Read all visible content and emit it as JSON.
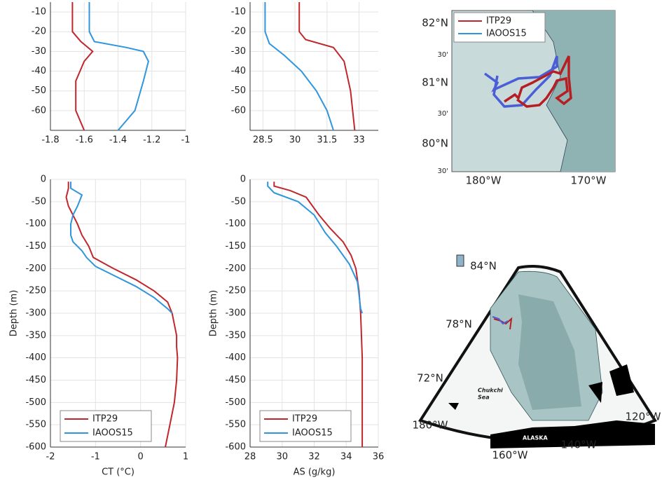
{
  "chart_data": [
    {
      "type": "profile",
      "xlim": [
        -1.8,
        -1
      ],
      "xticks": [
        -1.8,
        -1.6,
        -1.4,
        -1.2,
        -1
      ],
      "ylim": [
        -70,
        -5
      ],
      "yticks": [
        -60,
        -50,
        -40,
        -30,
        -20,
        -10
      ],
      "grid": true,
      "series": [
        {
          "name": "ITP29",
          "color": "#c0272d",
          "x": [
            -1.67,
            -1.67,
            -1.62,
            -1.55,
            -1.6,
            -1.65,
            -1.65,
            -1.6
          ],
          "y": [
            -5,
            -20,
            -25,
            -30,
            -35,
            -45,
            -60,
            -70
          ]
        },
        {
          "name": "IAOOS15",
          "color": "#2f95dc",
          "x": [
            -1.57,
            -1.57,
            -1.54,
            -1.35,
            -1.25,
            -1.22,
            -1.25,
            -1.3,
            -1.4
          ],
          "y": [
            -5,
            -20,
            -25,
            -28,
            -30,
            -35,
            -45,
            -60,
            -70
          ]
        }
      ]
    },
    {
      "type": "profile",
      "xlim": [
        27.9,
        33.9
      ],
      "xticks": [
        28.5,
        30,
        31.5,
        33
      ],
      "ylim": [
        -70,
        -5
      ],
      "yticks": [
        -60,
        -50,
        -40,
        -30,
        -20,
        -10
      ],
      "grid": true,
      "series": [
        {
          "name": "ITP29",
          "color": "#c0272d",
          "x": [
            30.2,
            30.2,
            30.5,
            31.8,
            32.3,
            32.6,
            32.8
          ],
          "y": [
            -5,
            -20,
            -24,
            -28,
            -35,
            -50,
            -70
          ]
        },
        {
          "name": "IAOOS15",
          "color": "#2f95dc",
          "x": [
            28.6,
            28.6,
            28.8,
            29.5,
            30.3,
            31,
            31.5,
            31.8
          ],
          "y": [
            -5,
            -20,
            -26,
            -32,
            -40,
            -50,
            -60,
            -70
          ]
        }
      ]
    },
    {
      "type": "profile",
      "xlim": [
        -2,
        1
      ],
      "xticks": [
        -2,
        -1,
        0,
        1
      ],
      "ylim": [
        -600,
        0
      ],
      "yticks": [
        -600,
        -550,
        -500,
        -450,
        -400,
        -350,
        -300,
        -250,
        -200,
        -150,
        -100,
        -50,
        0
      ],
      "grid": true,
      "xlabel": "CT (°C)",
      "ylabel": "Depth (m)",
      "legend": "lower left",
      "series": [
        {
          "name": "ITP29",
          "color": "#c0272d",
          "x": [
            -1.6,
            -1.6,
            -1.65,
            -1.6,
            -1.5,
            -1.4,
            -1.3,
            -1.15,
            -1.05,
            -0.6,
            -0.1,
            0.3,
            0.6,
            0.7,
            0.75,
            0.8,
            0.8,
            0.82,
            0.8,
            0.75,
            0.65,
            0.55
          ],
          "y": [
            -5,
            -20,
            -40,
            -60,
            -80,
            -100,
            -125,
            -150,
            -175,
            -200,
            -225,
            -250,
            -275,
            -300,
            -325,
            -350,
            -375,
            -400,
            -450,
            -500,
            -550,
            -600
          ]
        },
        {
          "name": "IAOOS15",
          "color": "#2f95dc",
          "x": [
            -1.55,
            -1.55,
            -1.3,
            -1.4,
            -1.5,
            -1.55,
            -1.55,
            -1.5,
            -1.3,
            -1.2,
            -1.0,
            -0.6,
            -0.1,
            0.3,
            0.6,
            0.7
          ],
          "y": [
            -5,
            -20,
            -35,
            -60,
            -80,
            -100,
            -125,
            -140,
            -160,
            -175,
            -195,
            -215,
            -240,
            -265,
            -290,
            -300
          ]
        }
      ]
    },
    {
      "type": "profile",
      "xlim": [
        28,
        36
      ],
      "xticks": [
        28,
        30,
        32,
        34,
        36
      ],
      "ylim": [
        -600,
        0
      ],
      "yticks": [
        -600,
        -550,
        -500,
        -450,
        -400,
        -350,
        -300,
        -250,
        -200,
        -150,
        -100,
        -50,
        0
      ],
      "grid": true,
      "xlabel": "AS (g/kg)",
      "ylabel": "Depth (m)",
      "legend": "lower left",
      "series": [
        {
          "name": "ITP29",
          "color": "#c0272d",
          "x": [
            29.5,
            29.5,
            30.5,
            31.5,
            32.3,
            33,
            33.8,
            34.3,
            34.6,
            34.8,
            34.9,
            35,
            35
          ],
          "y": [
            -5,
            -15,
            -25,
            -40,
            -80,
            -110,
            -140,
            -170,
            -200,
            -250,
            -300,
            -400,
            -600
          ]
        },
        {
          "name": "IAOOS15",
          "color": "#2f95dc",
          "x": [
            29.1,
            29.1,
            29.5,
            31,
            32,
            32.7,
            33.4,
            34.2,
            34.7,
            34.9,
            35
          ],
          "y": [
            -5,
            -15,
            -30,
            -50,
            -80,
            -120,
            -150,
            -190,
            -230,
            -290,
            -300
          ]
        }
      ]
    }
  ],
  "maps": [
    {
      "legend": [
        "ITP29",
        "IAOOS15"
      ],
      "lat_labels": [
        "82°N",
        "30'",
        "81°N",
        "30'",
        "80°N",
        "30'"
      ],
      "lon_labels": [
        "180°W",
        "170°W"
      ]
    },
    {
      "lat_labels": [
        "84°N",
        "78°N",
        "72°N"
      ],
      "lon_labels": [
        "180°W",
        "160°W",
        "140°W",
        "120°W"
      ],
      "sea_label": [
        "Chukchi",
        "Sea"
      ],
      "land_label": "ALASKA"
    }
  ]
}
